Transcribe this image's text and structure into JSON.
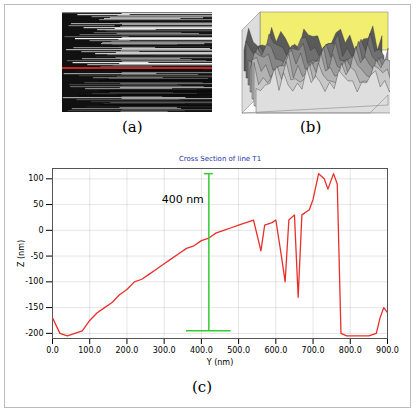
{
  "figure": {
    "panels": [
      {
        "label": "(a)"
      },
      {
        "label": "(b)"
      }
    ]
  },
  "chart_data": {
    "type": "line",
    "panel_label": "(c)",
    "title": "Cross Section of line T1",
    "x_label": "Y (nm)",
    "y_label": "Z (nm)",
    "x": [
      0,
      10,
      20,
      40,
      60,
      80,
      100,
      120,
      140,
      160,
      180,
      200,
      220,
      240,
      260,
      280,
      300,
      320,
      340,
      360,
      380,
      400,
      420,
      440,
      460,
      480,
      500,
      520,
      540,
      560,
      570,
      590,
      600,
      615,
      625,
      635,
      650,
      660,
      670,
      690,
      700,
      715,
      730,
      740,
      755,
      765,
      775,
      790,
      820,
      850,
      870,
      880,
      890,
      900
    ],
    "series": [
      {
        "name": "T1",
        "color": "#e8302a",
        "values": [
          -170,
          -185,
          -200,
          -205,
          -200,
          -195,
          -175,
          -160,
          -150,
          -140,
          -125,
          -115,
          -100,
          -95,
          -85,
          -75,
          -65,
          -55,
          -45,
          -35,
          -30,
          -20,
          -15,
          -5,
          0,
          5,
          10,
          15,
          20,
          -40,
          10,
          15,
          20,
          -50,
          -100,
          20,
          30,
          -130,
          30,
          40,
          60,
          110,
          100,
          80,
          110,
          90,
          -200,
          -205,
          -205,
          -205,
          -200,
          -170,
          -150,
          -160
        ]
      }
    ],
    "xlim": [
      0,
      900
    ],
    "xticks": [
      {
        "value": 0,
        "label": "0.0"
      },
      {
        "value": 100,
        "label": "100.0"
      },
      {
        "value": 200,
        "label": "200.0"
      },
      {
        "value": 300,
        "label": "300.0"
      },
      {
        "value": 400,
        "label": "400.0"
      },
      {
        "value": 500,
        "label": "500.0"
      },
      {
        "value": 600,
        "label": "600.0"
      },
      {
        "value": 700,
        "label": "700.0"
      },
      {
        "value": 800,
        "label": "800.0"
      },
      {
        "value": 900,
        "label": "900.0"
      }
    ],
    "ylim": [
      -210,
      120
    ],
    "yticks": [
      -200,
      -150,
      -100,
      -50,
      0,
      50,
      100
    ],
    "grid": true,
    "annotations": [
      {
        "text": "400 nm",
        "x": 420,
        "y": 60,
        "line_y": [
          -195,
          110
        ],
        "bar_x": [
          360,
          480
        ],
        "color": "#33cc33"
      }
    ]
  }
}
